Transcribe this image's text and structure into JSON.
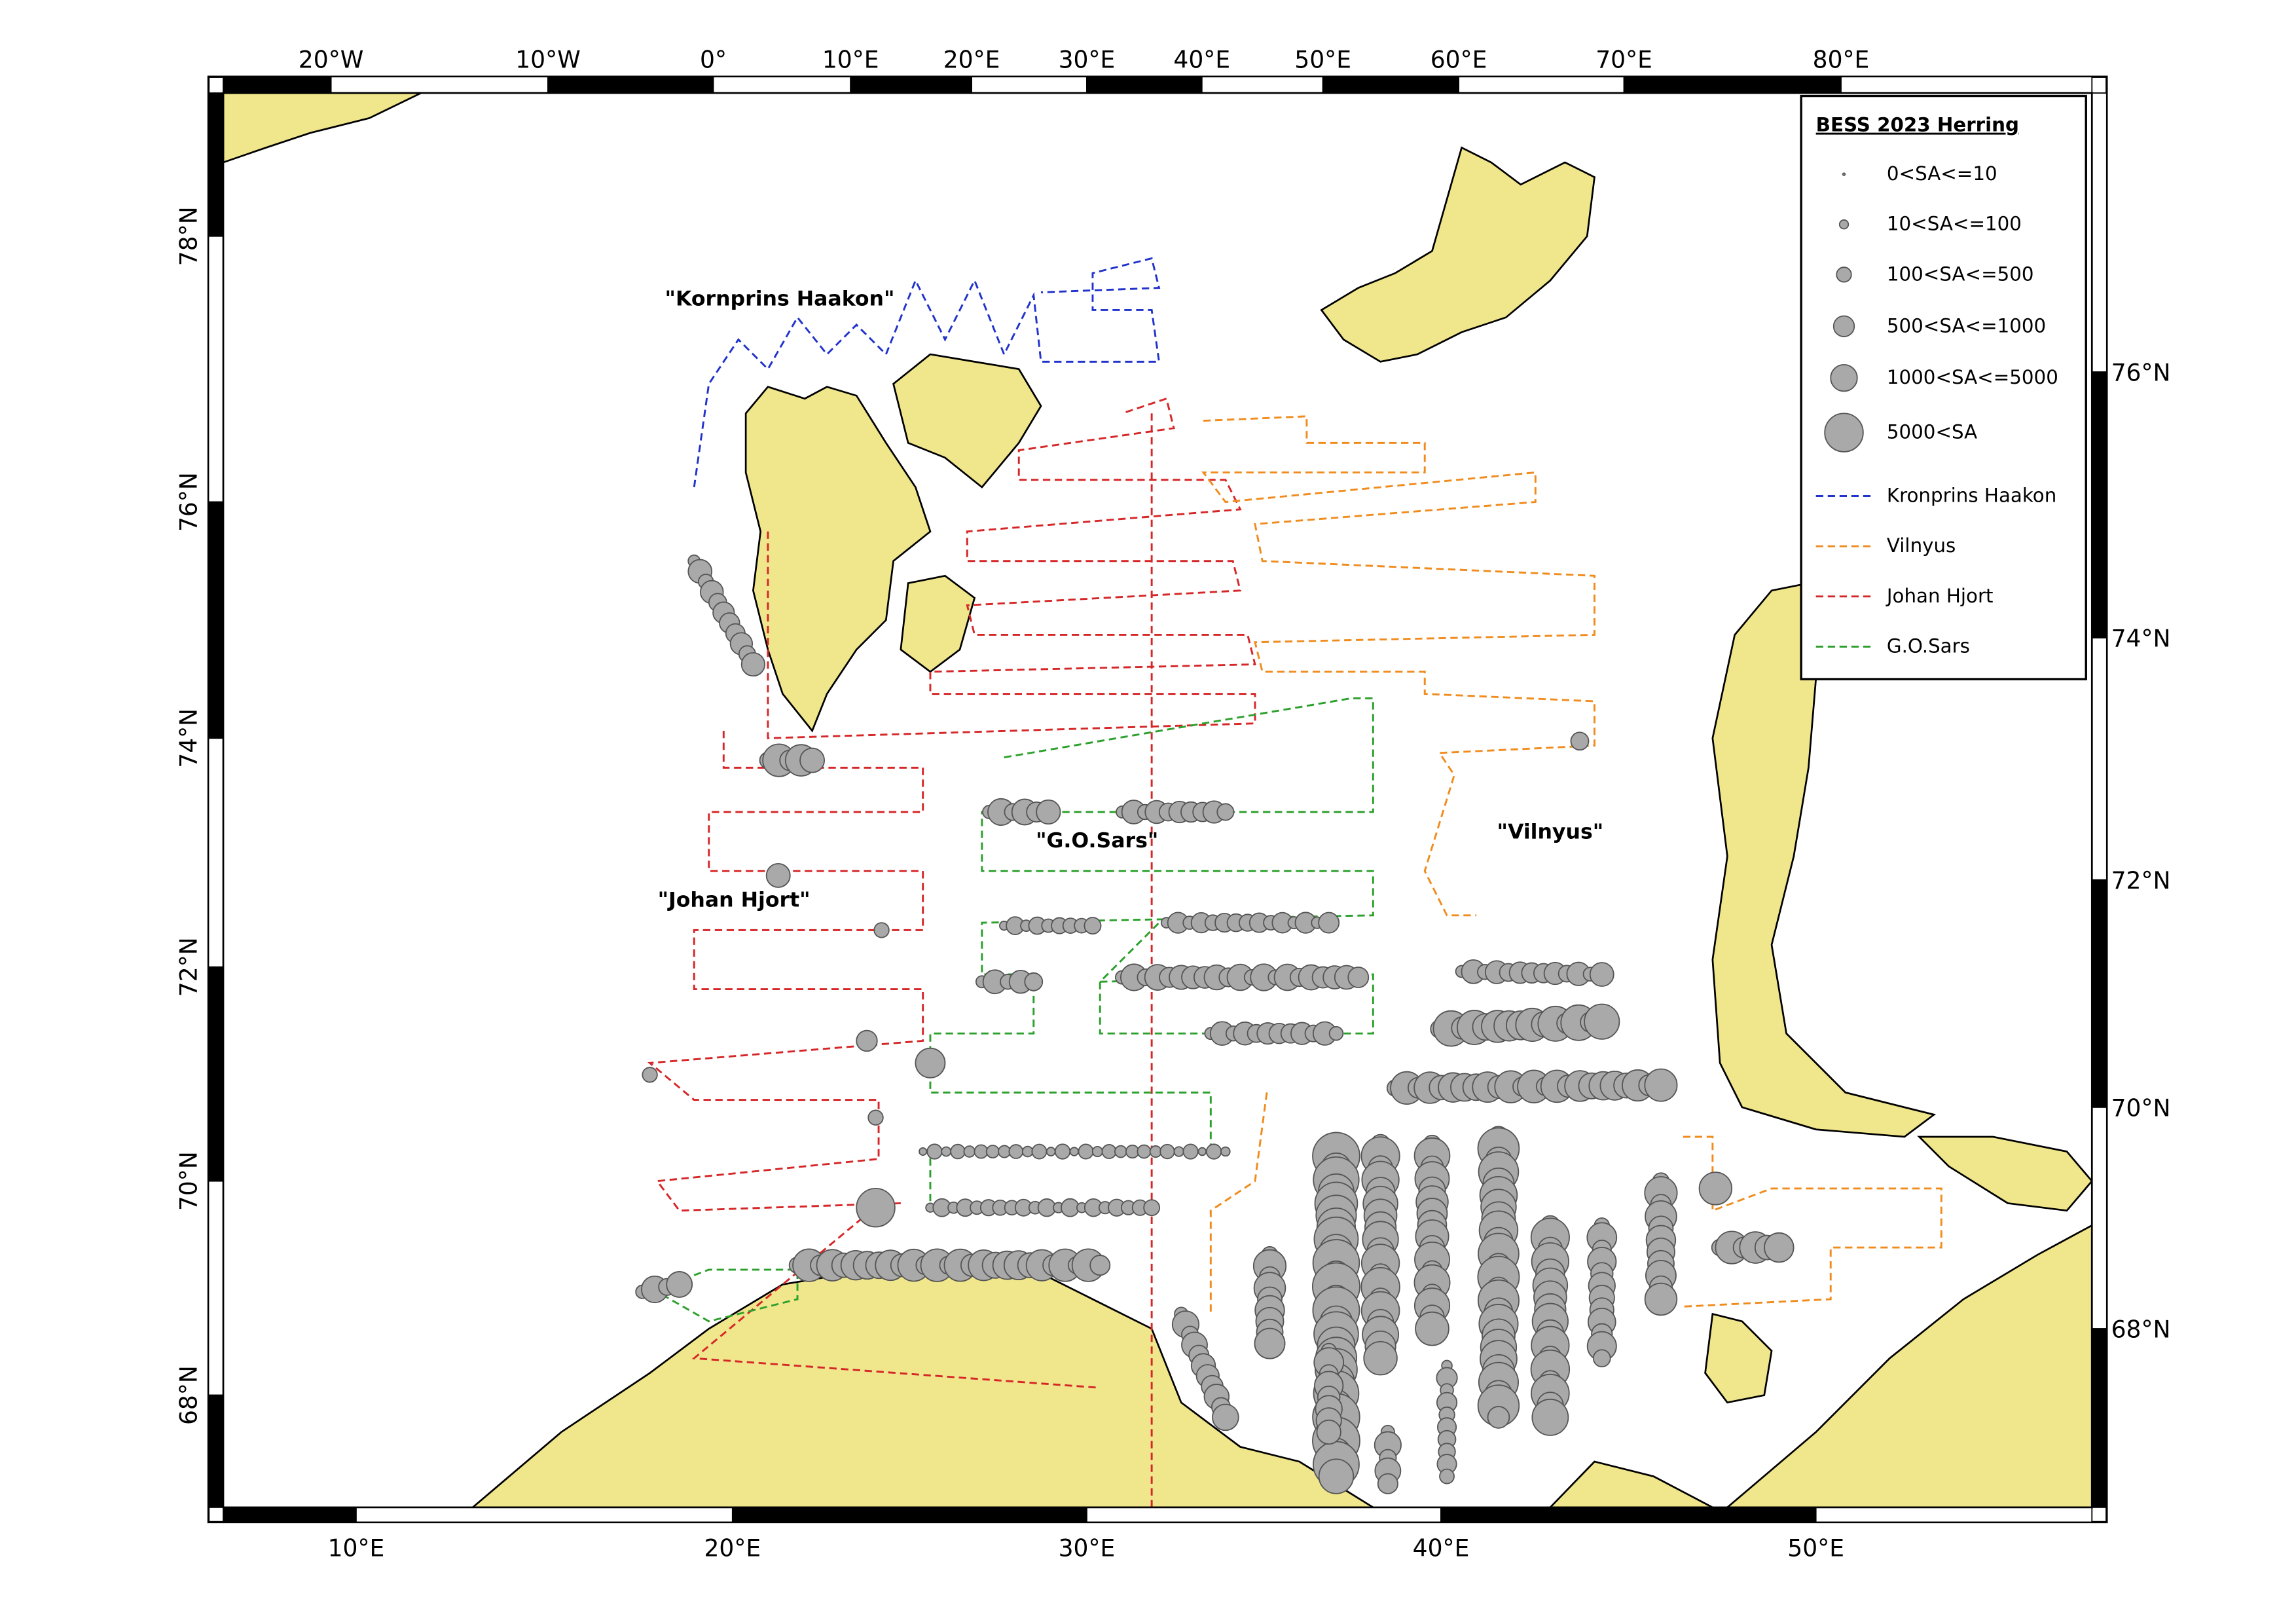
{
  "legend": {
    "title": "BESS 2023 Herring",
    "sizes": [
      "0<SA<=10",
      "10<SA<=100",
      "100<SA<=500",
      "500<SA<=1000",
      "1000<SA<=5000",
      "5000<SA"
    ],
    "tracks": [
      {
        "name": "Kronprins Haakon",
        "color": "#2233cc"
      },
      {
        "name": "Vilnyus",
        "color": "#f08c1e"
      },
      {
        "name": "Johan Hjort",
        "color": "#d62728"
      },
      {
        "name": "G.O.Sars",
        "color": "#2ca02c"
      }
    ]
  },
  "ship_labels": [
    "\"Kornprins Haakon\"",
    "\"G.O.Sars\"",
    "\"Vilnyus\"",
    "\"Johan Hjort\""
  ],
  "top_ticks": [
    "20°W",
    "10°W",
    "0°",
    "10°E",
    "20°E",
    "30°E",
    "40°E",
    "50°E",
    "60°E",
    "70°E",
    "80°E"
  ],
  "bottom_ticks": [
    "10°E",
    "20°E",
    "30°E",
    "40°E",
    "50°E"
  ],
  "left_ticks": [
    "78°N",
    "76°N",
    "74°N",
    "72°N",
    "70°N",
    "68°N"
  ],
  "right_ticks": [
    "76°N",
    "74°N",
    "72°N",
    "70°N",
    "68°N"
  ]
}
